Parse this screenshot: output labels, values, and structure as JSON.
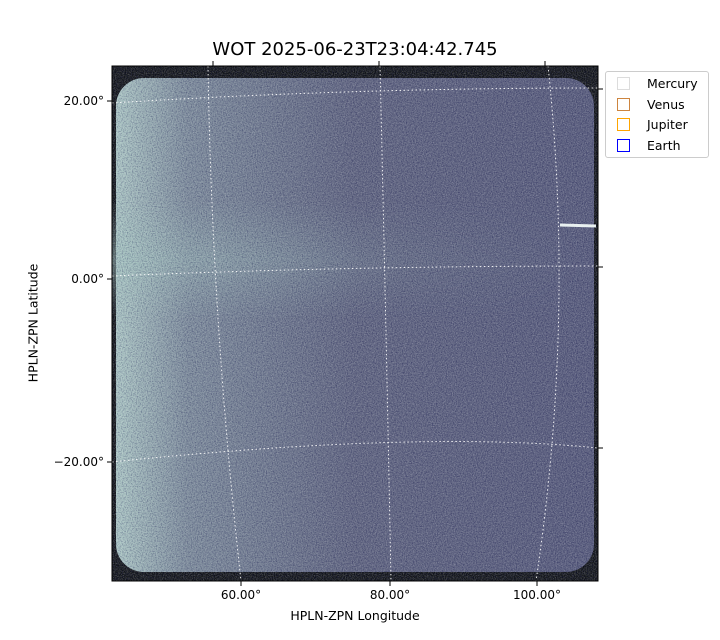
{
  "chart_data": {
    "type": "image",
    "title": "WOT 2025-06-23T23:04:42.745",
    "xlabel": "HPLN-ZPN Longitude",
    "ylabel": "HPLN-ZPN Latitude",
    "x_ticks": [
      "60.00°",
      "80.00°",
      "100.00°"
    ],
    "y_ticks": [
      "20.00°",
      "0.00°",
      "−20.00°"
    ],
    "grid": true,
    "colormap": "bone-like grayscale-blue",
    "legend_placement": "outside-top-right",
    "legend": [
      {
        "name": "Mercury",
        "color": "#dcdcdc"
      },
      {
        "name": "Venus",
        "color": "#cd853f"
      },
      {
        "name": "Jupiter",
        "color": "#ffa500"
      },
      {
        "name": "Earth",
        "color": "#0000ff"
      }
    ]
  }
}
